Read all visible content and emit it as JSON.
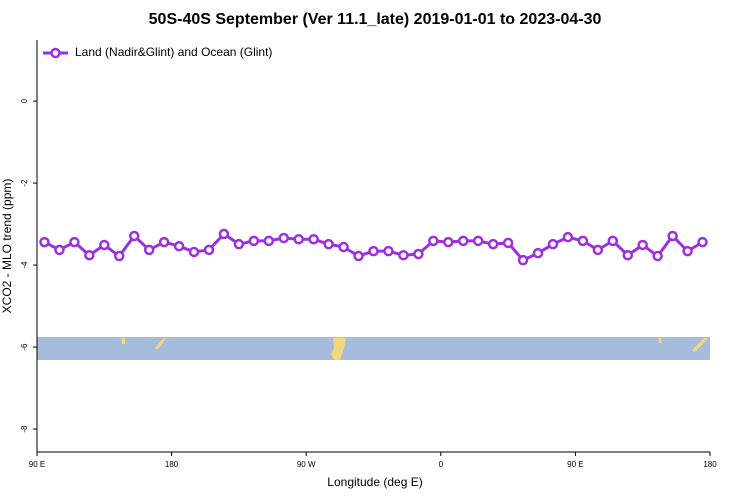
{
  "chart_data": {
    "type": "line",
    "title": "50S-40S September (Ver 11.1_late)   2019-01-01 to 2023-04-30",
    "x_label": "Longitude (deg E)",
    "y_label": "XCO2 - MLO trend (ppm)",
    "x": [
      -265,
      -255,
      -245,
      -235,
      -225,
      -215,
      -205,
      -195,
      -185,
      -175,
      -165,
      -155,
      -145,
      -135,
      -125,
      -115,
      -105,
      -95,
      -85,
      -75,
      -65,
      -55,
      -45,
      -35,
      -25,
      -15,
      -5,
      5,
      15,
      25,
      35,
      45,
      55,
      65,
      75,
      85,
      95,
      105,
      115,
      125,
      135,
      145,
      155,
      165,
      175
    ],
    "series": [
      {
        "name": "Land (Nadir&Glint) and Ocean (Glint)",
        "color": "#9b30e0",
        "values": [
          -3.44,
          -3.63,
          -3.44,
          -3.76,
          -3.51,
          -3.78,
          -3.29,
          -3.63,
          -3.44,
          -3.54,
          -3.68,
          -3.63,
          -3.24,
          -3.49,
          -3.41,
          -3.41,
          -3.34,
          -3.37,
          -3.37,
          -3.49,
          -3.56,
          -3.78,
          -3.66,
          -3.66,
          -3.76,
          -3.73,
          -3.41,
          -3.44,
          -3.41,
          -3.41,
          -3.49,
          -3.46,
          -3.88,
          -3.71,
          -3.49,
          -3.32,
          -3.41,
          -3.63,
          -3.41,
          -3.76,
          -3.51,
          -3.78,
          -3.29,
          -3.66,
          -3.44
        ]
      }
    ],
    "xlim": [
      -270,
      180
    ],
    "xticks": [
      {
        "value": -270,
        "label": "90 E"
      },
      {
        "value": -180,
        "label": "180"
      },
      {
        "value": -90,
        "label": "90 W"
      },
      0,
      {
        "value": 90,
        "label": "90 E"
      },
      180
    ],
    "ylim": [
      -8.56,
      1.49
    ],
    "yticks": [
      0,
      -2,
      -4,
      -6,
      -8
    ],
    "legend": "upper left"
  }
}
